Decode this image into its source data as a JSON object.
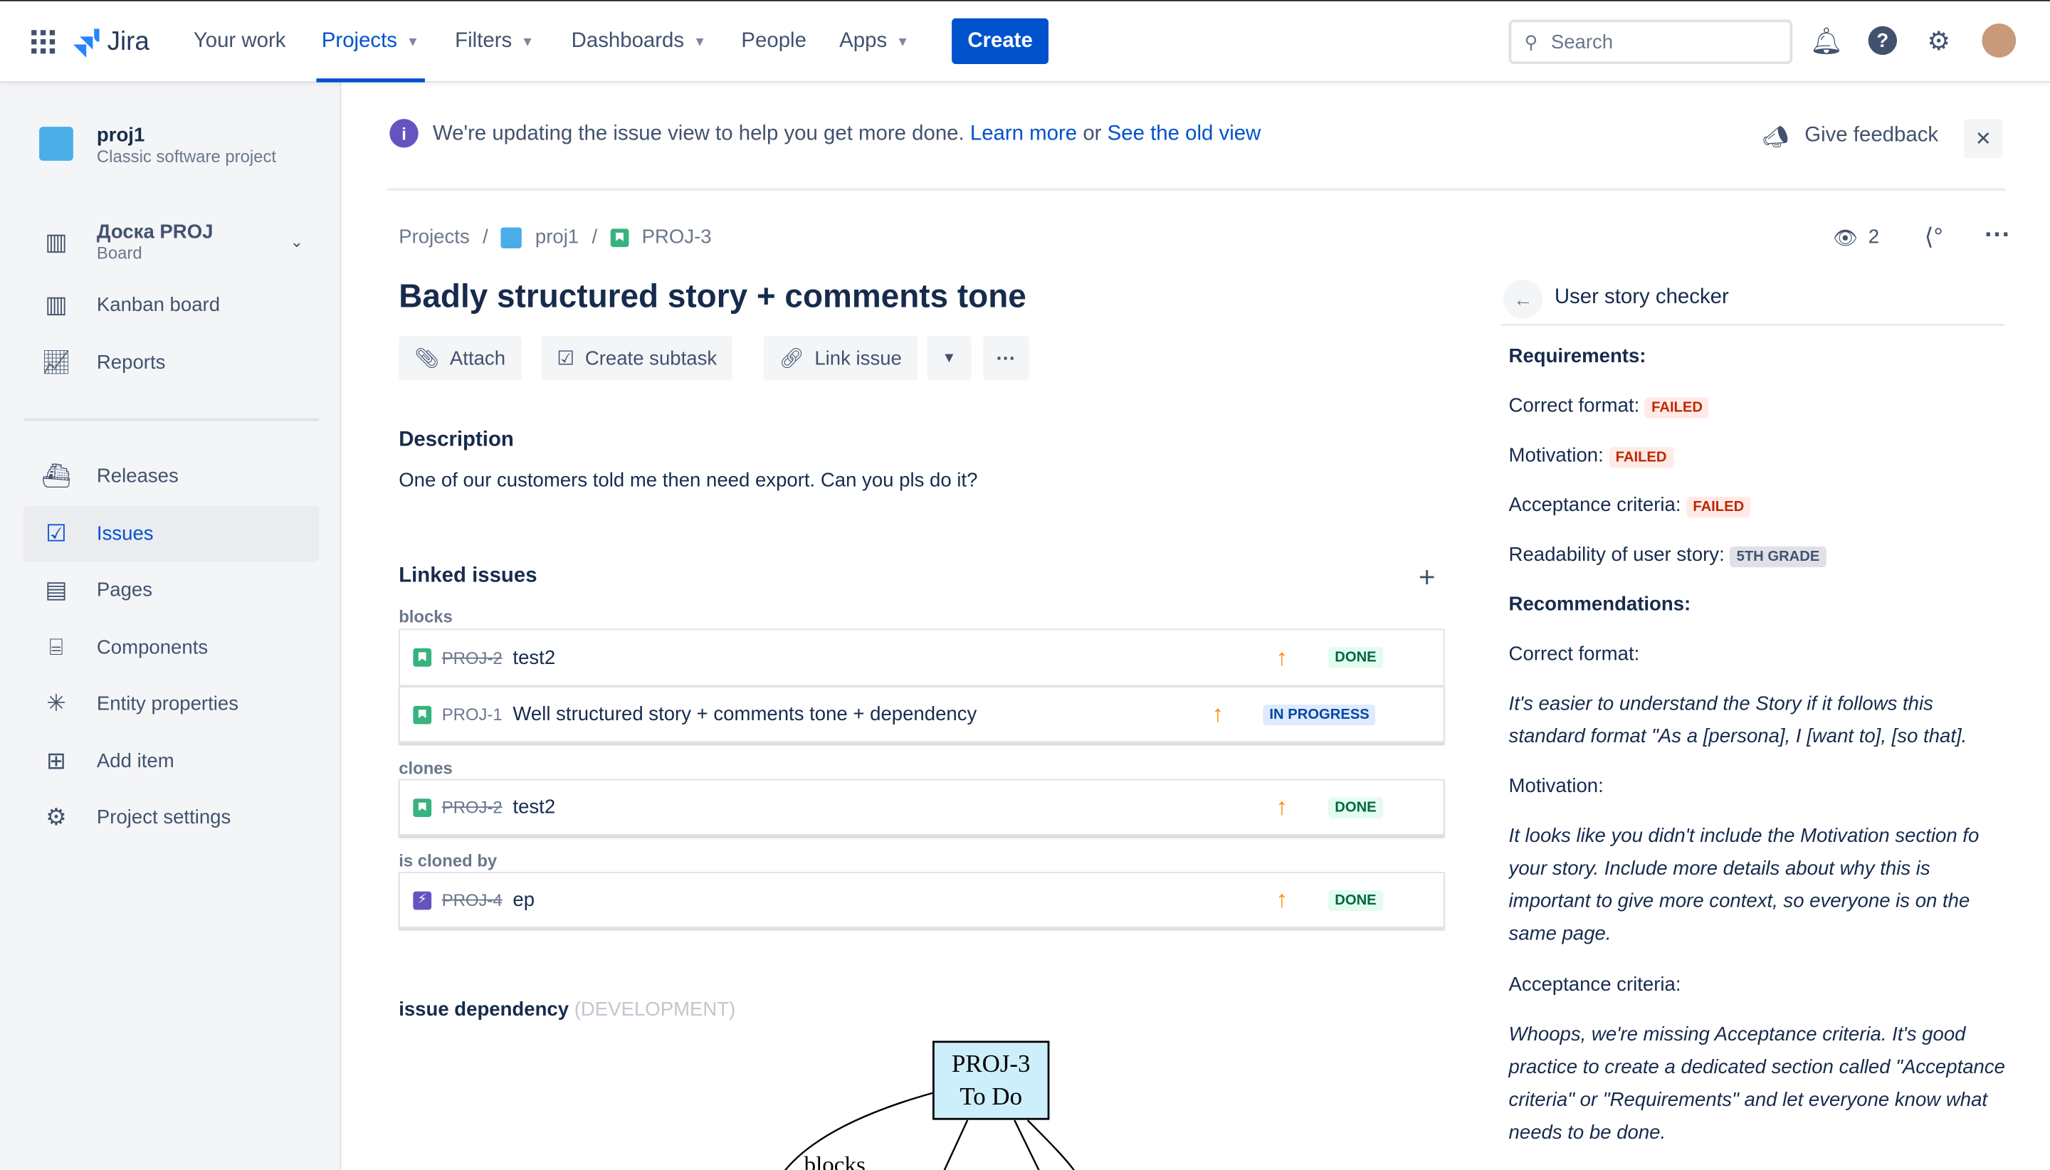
{
  "topbar": {
    "product": "Jira",
    "nav": [
      {
        "label": "Your work"
      },
      {
        "label": "Projects",
        "active": true
      },
      {
        "label": "Filters"
      },
      {
        "label": "Dashboards"
      },
      {
        "label": "People"
      },
      {
        "label": "Apps"
      }
    ],
    "create": "Create",
    "search_placeholder": "Search"
  },
  "sidebar": {
    "project_name": "proj1",
    "project_type": "Classic software project",
    "board_name": "Доска PROJ",
    "board_sub": "Board",
    "items": [
      {
        "label": "Kanban board",
        "icon": "board-icon"
      },
      {
        "label": "Reports",
        "icon": "chart-icon"
      },
      {
        "label": "Releases",
        "icon": "ship-icon"
      },
      {
        "label": "Issues",
        "icon": "issues-icon",
        "selected": true
      },
      {
        "label": "Pages",
        "icon": "page-icon"
      },
      {
        "label": "Components",
        "icon": "component-icon"
      },
      {
        "label": "Entity properties",
        "icon": "nodes-icon"
      },
      {
        "label": "Add item",
        "icon": "add-item-icon"
      },
      {
        "label": "Project settings",
        "icon": "gear-icon"
      }
    ]
  },
  "banner": {
    "text": "We're updating the issue view to help you get more done.",
    "learn_more": "Learn more",
    "or": "or",
    "old_view": "See the old view",
    "feedback": "Give feedback"
  },
  "breadcrumb": {
    "root": "Projects",
    "project": "proj1",
    "issue": "PROJ-3"
  },
  "watchers": "2",
  "issue": {
    "title": "Badly structured story + comments tone",
    "actions": {
      "attach": "Attach",
      "subtask": "Create subtask",
      "link": "Link issue"
    },
    "description_heading": "Description",
    "description": "One of our customers told me then need export. Can you pls do it?"
  },
  "linked": {
    "heading": "Linked issues",
    "groups": [
      {
        "label": "blocks",
        "issues": [
          {
            "key": "PROJ-2",
            "summary": "test2",
            "status": "DONE",
            "resolved": true
          },
          {
            "key": "PROJ-1",
            "summary": "Well structured story + comments tone + dependency",
            "status": "IN PROGRESS",
            "resolved": false
          }
        ]
      },
      {
        "label": "clones",
        "issues": [
          {
            "key": "PROJ-2",
            "summary": "test2",
            "status": "DONE",
            "resolved": true
          }
        ]
      },
      {
        "label": "is cloned by",
        "issues": [
          {
            "key": "PROJ-4",
            "summary": "ep",
            "status": "DONE",
            "resolved": true
          }
        ]
      }
    ]
  },
  "dependency": {
    "heading": "issue dependency",
    "tag": "(DEVELOPMENT)",
    "node_key": "PROJ-3",
    "node_status": "To Do",
    "edge_label": "blocks"
  },
  "checker": {
    "title": "User story checker",
    "requirements": "Requirements:",
    "r1": "Correct format:",
    "r1v": "FAILED",
    "r2": "Motivation:",
    "r2v": "FAILED",
    "r3": "Acceptance criteria:",
    "r3v": "FAILED",
    "r4": "Readability of user story:",
    "r4v": "5TH GRADE",
    "recommendations": "Recommendations:",
    "c1": "Correct format:",
    "c1t": "It's easier to understand the Story if it follows this standard format \"As a [persona], I [want to], [so that].",
    "c2": "Motivation:",
    "c2t": "It looks like you didn't include the Motivation section fo your story. Include more details about why this is important to give more context, so everyone is on the same page.",
    "c3": "Acceptance criteria:",
    "c3t": "Whoops, we're missing Acceptance criteria. It's good practice to create a dedicated section called \"Acceptance criteria\" or \"Requirements\" and let everyone know what needs to be done."
  }
}
